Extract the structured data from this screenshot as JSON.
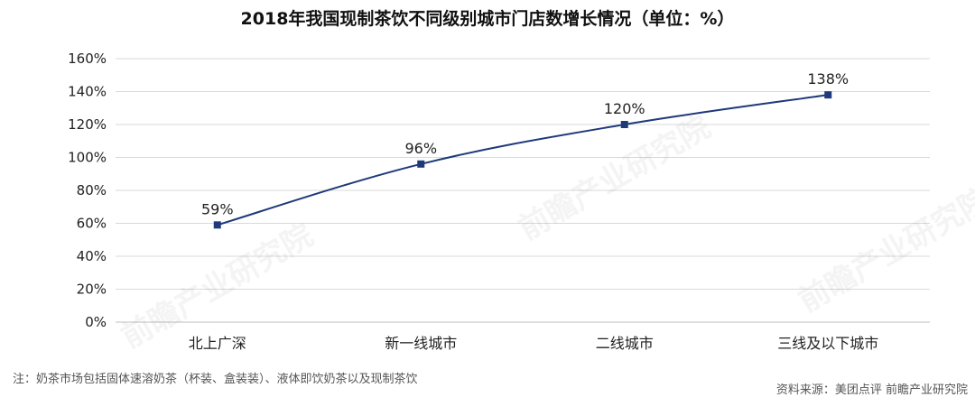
{
  "title": "2018年我国现制茶饮不同级别城市门店数增长情况（单位：%）",
  "note": "注：奶茶市场包括固体速溶奶茶（杯装、盒装装）、液体即饮奶茶以及现制茶饮",
  "source": "资料来源：美团点评 前瞻产业研究院",
  "watermark": "前瞻产业研究院",
  "colors": {
    "line": "#1f3a7a",
    "marker": "#1f3a7a",
    "grid": "#d9d9d9",
    "axis": "#bfbfbf"
  },
  "chart_data": {
    "type": "line",
    "categories": [
      "北上广深",
      "新一线城市",
      "二线城市",
      "三线及以下城市"
    ],
    "values": [
      59,
      96,
      120,
      138
    ],
    "data_labels": [
      "59%",
      "96%",
      "120%",
      "138%"
    ],
    "y_ticks": [
      "0%",
      "20%",
      "40%",
      "60%",
      "80%",
      "100%",
      "120%",
      "140%",
      "160%"
    ],
    "ylim": [
      0,
      160
    ],
    "grid": true,
    "smooth": true
  }
}
